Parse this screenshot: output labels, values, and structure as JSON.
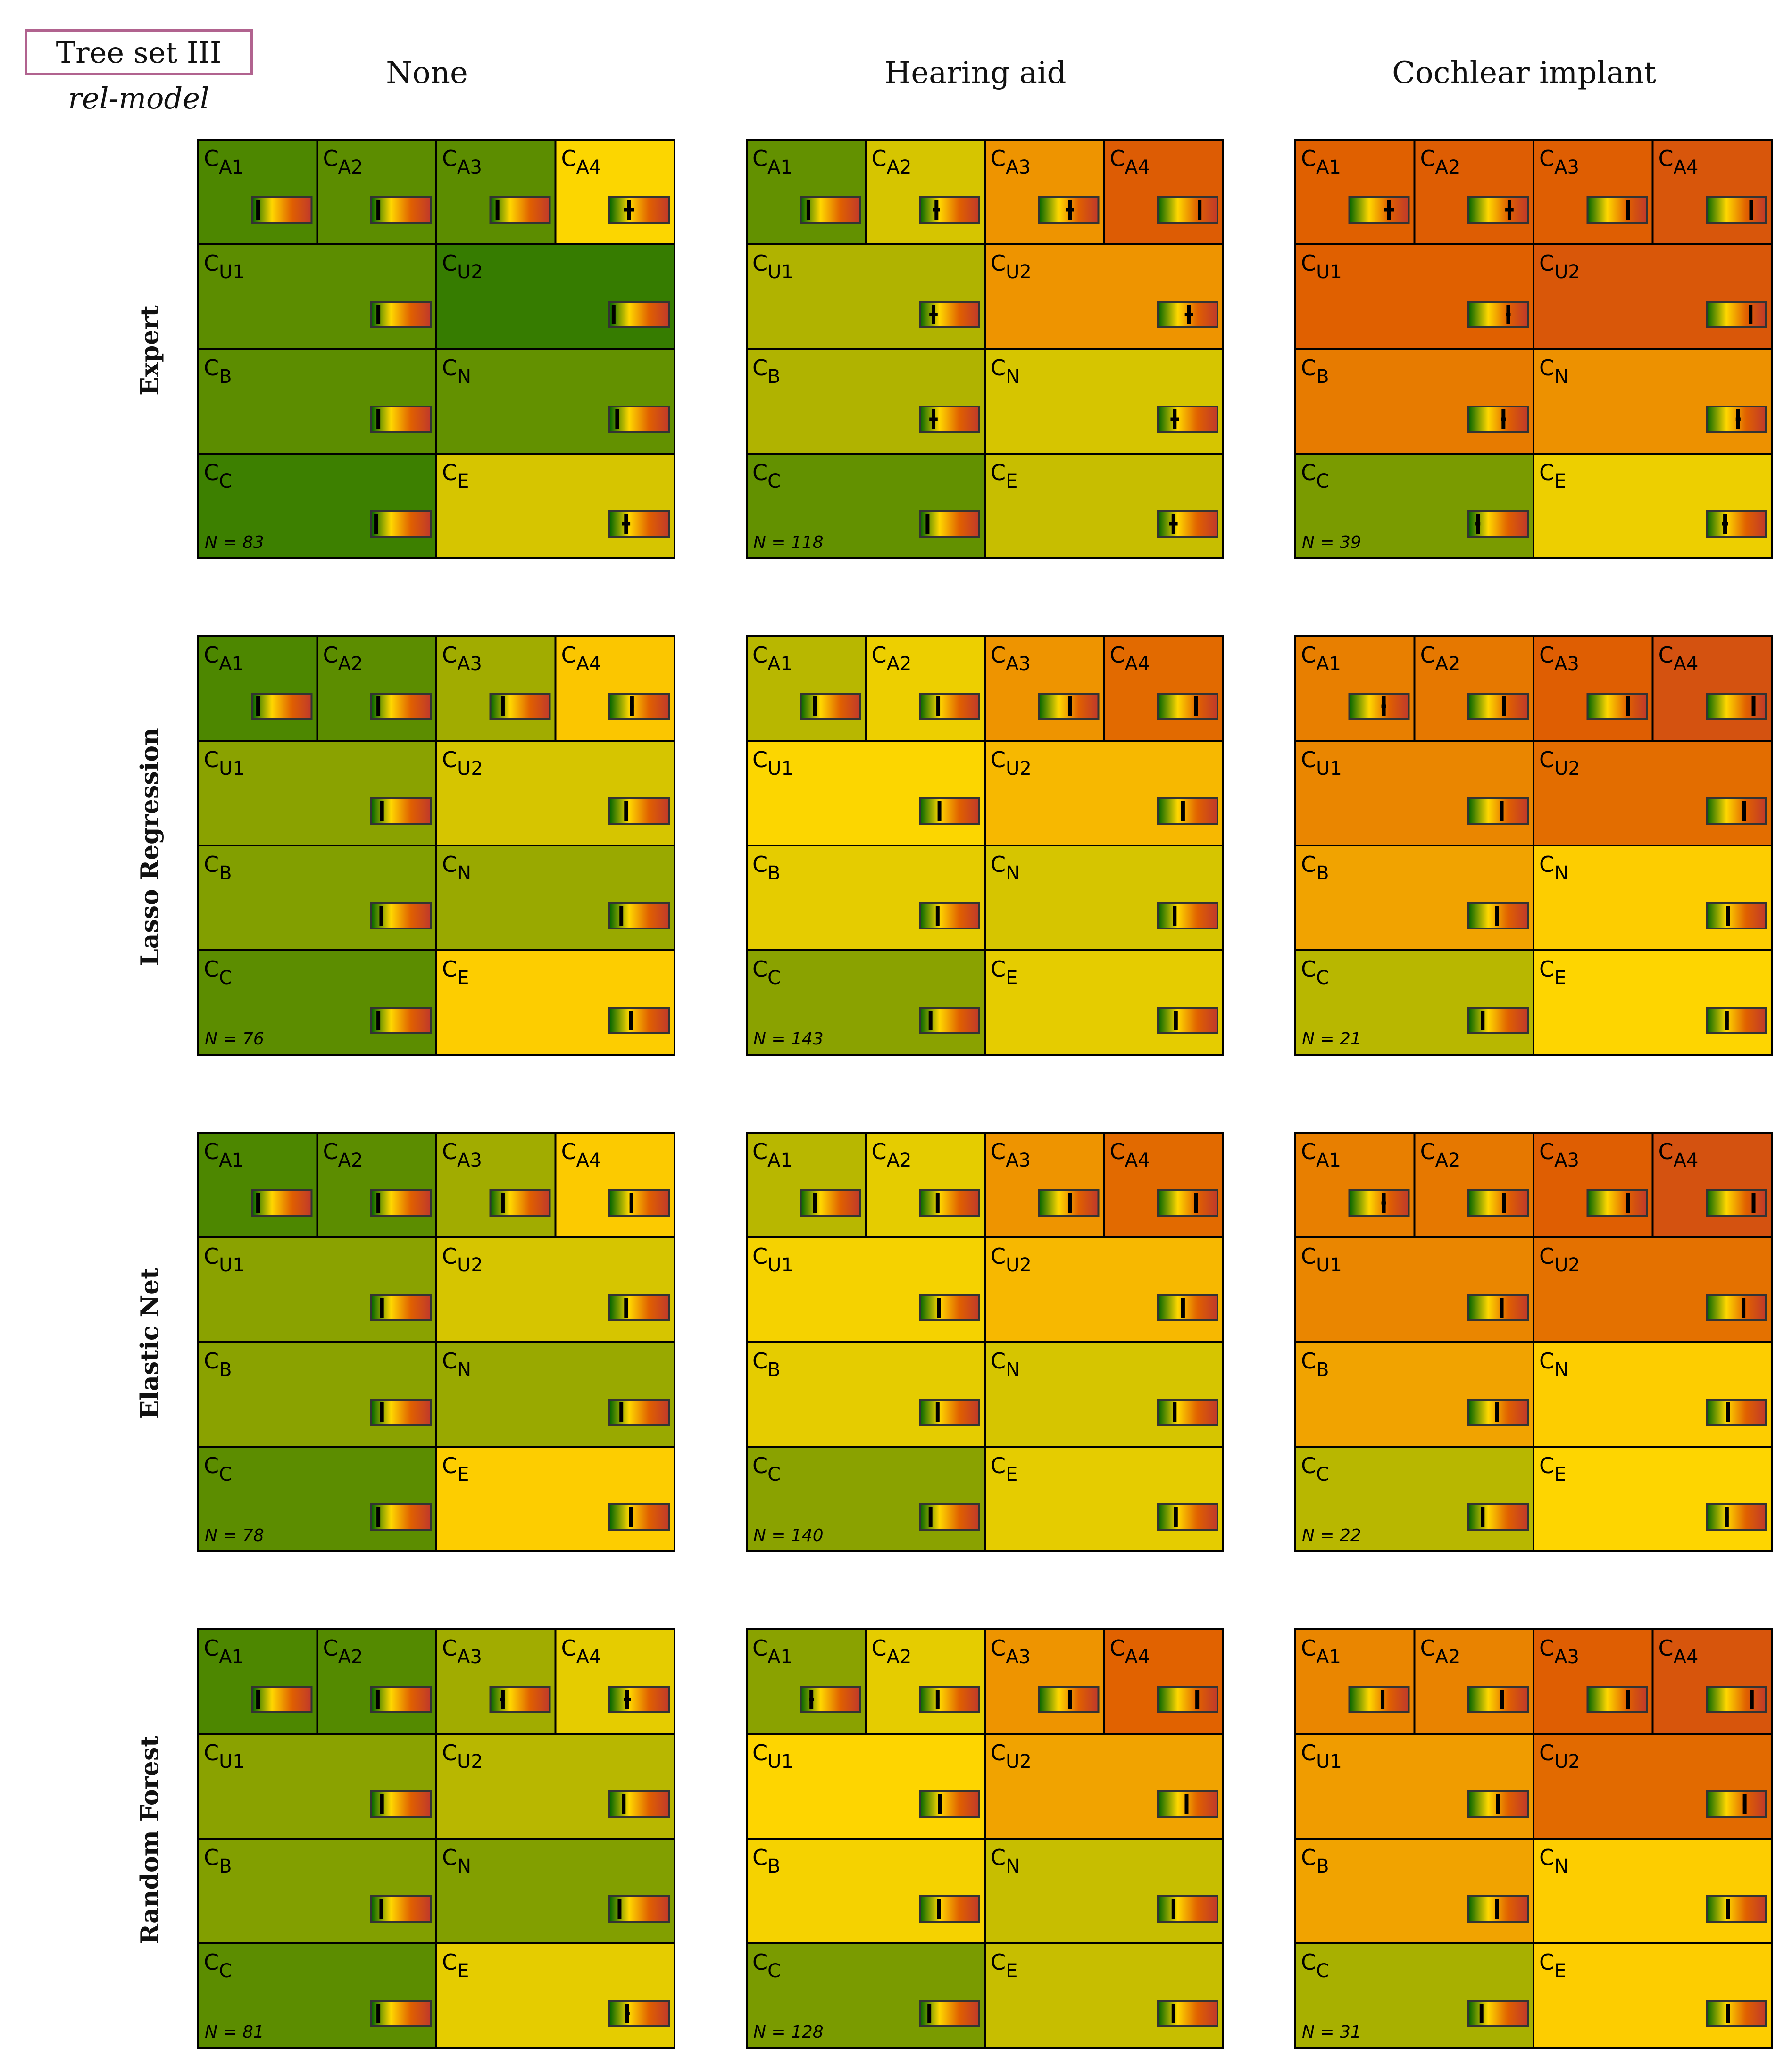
{
  "chart_data": {
    "type": "heatmap",
    "title": "Tree set III",
    "subtitle": "rel-model",
    "columns": [
      "None",
      "Hearing aid",
      "Cochlear implant"
    ],
    "rows": [
      "Expert",
      "Lasso Regression",
      "Elastic Net",
      "Random Forest"
    ],
    "cell_layout": [
      [
        "A1",
        "A2",
        "A3",
        "A4"
      ],
      [
        "U1",
        "U2"
      ],
      [
        "B",
        "N"
      ],
      [
        "C",
        "E"
      ]
    ],
    "colormap": [
      "#006400",
      "#ffd700",
      "#e06000",
      "#c0392b"
    ],
    "value_range": [
      0,
      1
    ],
    "panels": [
      {
        "row": "Expert",
        "column": "None",
        "N": "N = 83",
        "cells": {
          "A1": {
            "v": 0.1,
            "err": 0.01
          },
          "A2": {
            "v": 0.12,
            "err": 0.01
          },
          "A3": {
            "v": 0.12,
            "err": 0.03
          },
          "A4": {
            "v": 0.33,
            "err": 0.09
          },
          "U1": {
            "v": 0.12,
            "err": 0.01
          },
          "U2": {
            "v": 0.07,
            "err": 0.01
          },
          "B": {
            "v": 0.12,
            "err": 0.01
          },
          "N": {
            "v": 0.13,
            "err": 0.01
          },
          "C": {
            "v": 0.08,
            "err": 0.01
          },
          "E": {
            "v": 0.28,
            "err": 0.07
          }
        }
      },
      {
        "row": "Expert",
        "column": "Hearing aid",
        "N": "N = 118",
        "cells": {
          "A1": {
            "v": 0.13,
            "err": 0.02
          },
          "A2": {
            "v": 0.28,
            "err": 0.06
          },
          "A3": {
            "v": 0.52,
            "err": 0.07
          },
          "A4": {
            "v": 0.7,
            "err": 0.03
          },
          "U1": {
            "v": 0.23,
            "err": 0.07
          },
          "U2": {
            "v": 0.52,
            "err": 0.07
          },
          "B": {
            "v": 0.23,
            "err": 0.07
          },
          "N": {
            "v": 0.28,
            "err": 0.07
          },
          "C": {
            "v": 0.13,
            "err": 0.02
          },
          "E": {
            "v": 0.26,
            "err": 0.07
          }
        }
      },
      {
        "row": "Expert",
        "column": "Cochlear implant",
        "N": "N = 39",
        "cells": {
          "A1": {
            "v": 0.67,
            "err": 0.08
          },
          "A2": {
            "v": 0.69,
            "err": 0.07
          },
          "A3": {
            "v": 0.68,
            "err": 0.03
          },
          "A4": {
            "v": 0.75,
            "err": 0.02
          },
          "U1": {
            "v": 0.67,
            "err": 0.04
          },
          "U2": {
            "v": 0.74,
            "err": 0.02
          },
          "B": {
            "v": 0.59,
            "err": 0.04
          },
          "N": {
            "v": 0.53,
            "err": 0.04
          },
          "C": {
            "v": 0.16,
            "err": 0.04
          },
          "E": {
            "v": 0.31,
            "err": 0.05
          }
        }
      },
      {
        "row": "Lasso Regression",
        "column": "None",
        "N": "N = 76",
        "cells": {
          "A1": {
            "v": 0.1,
            "err": 0.01
          },
          "A2": {
            "v": 0.12,
            "err": 0.01
          },
          "A3": {
            "v": 0.21,
            "err": 0.02
          },
          "A4": {
            "v": 0.38,
            "err": 0.03
          },
          "U1": {
            "v": 0.18,
            "err": 0.01
          },
          "U2": {
            "v": 0.28,
            "err": 0.02
          },
          "B": {
            "v": 0.17,
            "err": 0.01
          },
          "N": {
            "v": 0.2,
            "err": 0.01
          },
          "C": {
            "v": 0.12,
            "err": 0.01
          },
          "E": {
            "v": 0.36,
            "err": 0.03
          }
        }
      },
      {
        "row": "Lasso Regression",
        "column": "Hearing aid",
        "N": "N = 143",
        "cells": {
          "A1": {
            "v": 0.24,
            "err": 0.02
          },
          "A2": {
            "v": 0.31,
            "err": 0.02
          },
          "A3": {
            "v": 0.52,
            "err": 0.02
          },
          "A4": {
            "v": 0.64,
            "err": 0.02
          },
          "U1": {
            "v": 0.33,
            "err": 0.02
          },
          "U2": {
            "v": 0.42,
            "err": 0.02
          },
          "B": {
            "v": 0.3,
            "err": 0.02
          },
          "N": {
            "v": 0.28,
            "err": 0.02
          },
          "C": {
            "v": 0.18,
            "err": 0.02
          },
          "E": {
            "v": 0.3,
            "err": 0.02
          }
        }
      },
      {
        "row": "Lasso Regression",
        "column": "Cochlear implant",
        "N": "N = 21",
        "cells": {
          "A1": {
            "v": 0.58,
            "err": 0.04
          },
          "A2": {
            "v": 0.6,
            "err": 0.03
          },
          "A3": {
            "v": 0.68,
            "err": 0.02
          },
          "A4": {
            "v": 0.79,
            "err": 0.02
          },
          "U1": {
            "v": 0.56,
            "err": 0.02
          },
          "U2": {
            "v": 0.63,
            "err": 0.02
          },
          "B": {
            "v": 0.48,
            "err": 0.02
          },
          "N": {
            "v": 0.36,
            "err": 0.02
          },
          "C": {
            "v": 0.24,
            "err": 0.03
          },
          "E": {
            "v": 0.34,
            "err": 0.03
          }
        }
      },
      {
        "row": "Elastic Net",
        "column": "None",
        "N": "N = 78",
        "cells": {
          "A1": {
            "v": 0.1,
            "err": 0.01
          },
          "A2": {
            "v": 0.12,
            "err": 0.01
          },
          "A3": {
            "v": 0.21,
            "err": 0.02
          },
          "A4": {
            "v": 0.37,
            "err": 0.03
          },
          "U1": {
            "v": 0.18,
            "err": 0.01
          },
          "U2": {
            "v": 0.28,
            "err": 0.02
          },
          "B": {
            "v": 0.18,
            "err": 0.01
          },
          "N": {
            "v": 0.2,
            "err": 0.01
          },
          "C": {
            "v": 0.12,
            "err": 0.01
          },
          "E": {
            "v": 0.36,
            "err": 0.03
          }
        }
      },
      {
        "row": "Elastic Net",
        "column": "Hearing aid",
        "N": "N = 140",
        "cells": {
          "A1": {
            "v": 0.24,
            "err": 0.02
          },
          "A2": {
            "v": 0.3,
            "err": 0.02
          },
          "A3": {
            "v": 0.52,
            "err": 0.02
          },
          "A4": {
            "v": 0.64,
            "err": 0.02
          },
          "U1": {
            "v": 0.32,
            "err": 0.02
          },
          "U2": {
            "v": 0.42,
            "err": 0.02
          },
          "B": {
            "v": 0.3,
            "err": 0.02
          },
          "N": {
            "v": 0.28,
            "err": 0.02
          },
          "C": {
            "v": 0.18,
            "err": 0.02
          },
          "E": {
            "v": 0.3,
            "err": 0.02
          }
        }
      },
      {
        "row": "Elastic Net",
        "column": "Cochlear implant",
        "N": "N = 22",
        "cells": {
          "A1": {
            "v": 0.58,
            "err": 0.04
          },
          "A2": {
            "v": 0.6,
            "err": 0.03
          },
          "A3": {
            "v": 0.68,
            "err": 0.02
          },
          "A4": {
            "v": 0.79,
            "err": 0.02
          },
          "U1": {
            "v": 0.56,
            "err": 0.02
          },
          "U2": {
            "v": 0.62,
            "err": 0.02
          },
          "B": {
            "v": 0.48,
            "err": 0.02
          },
          "N": {
            "v": 0.36,
            "err": 0.02
          },
          "C": {
            "v": 0.24,
            "err": 0.03
          },
          "E": {
            "v": 0.34,
            "err": 0.03
          }
        }
      },
      {
        "row": "Random Forest",
        "column": "None",
        "N": "N = 81",
        "cells": {
          "A1": {
            "v": 0.1,
            "err": 0.01
          },
          "A2": {
            "v": 0.11,
            "err": 0.01
          },
          "A3": {
            "v": 0.21,
            "err": 0.04
          },
          "A4": {
            "v": 0.3,
            "err": 0.06
          },
          "U1": {
            "v": 0.18,
            "err": 0.02
          },
          "U2": {
            "v": 0.24,
            "err": 0.03
          },
          "B": {
            "v": 0.17,
            "err": 0.02
          },
          "N": {
            "v": 0.17,
            "err": 0.02
          },
          "C": {
            "v": 0.12,
            "err": 0.01
          },
          "E": {
            "v": 0.3,
            "err": 0.04
          }
        }
      },
      {
        "row": "Random Forest",
        "column": "Hearing aid",
        "N": "N = 128",
        "cells": {
          "A1": {
            "v": 0.18,
            "err": 0.04
          },
          "A2": {
            "v": 0.3,
            "err": 0.03
          },
          "A3": {
            "v": 0.52,
            "err": 0.02
          },
          "A4": {
            "v": 0.66,
            "err": 0.02
          },
          "U1": {
            "v": 0.34,
            "err": 0.02
          },
          "U2": {
            "v": 0.48,
            "err": 0.03
          },
          "B": {
            "v": 0.32,
            "err": 0.02
          },
          "N": {
            "v": 0.26,
            "err": 0.02
          },
          "C": {
            "v": 0.16,
            "err": 0.02
          },
          "E": {
            "v": 0.26,
            "err": 0.02
          }
        }
      },
      {
        "row": "Random Forest",
        "column": "Cochlear implant",
        "N": "N = 31",
        "cells": {
          "A1": {
            "v": 0.56,
            "err": 0.03
          },
          "A2": {
            "v": 0.57,
            "err": 0.03
          },
          "A3": {
            "v": 0.68,
            "err": 0.03
          },
          "A4": {
            "v": 0.76,
            "err": 0.02
          },
          "U1": {
            "v": 0.5,
            "err": 0.02
          },
          "U2": {
            "v": 0.64,
            "err": 0.03
          },
          "B": {
            "v": 0.48,
            "err": 0.02
          },
          "N": {
            "v": 0.36,
            "err": 0.02
          },
          "C": {
            "v": 0.22,
            "err": 0.03
          },
          "E": {
            "v": 0.36,
            "err": 0.03
          }
        }
      }
    ]
  }
}
